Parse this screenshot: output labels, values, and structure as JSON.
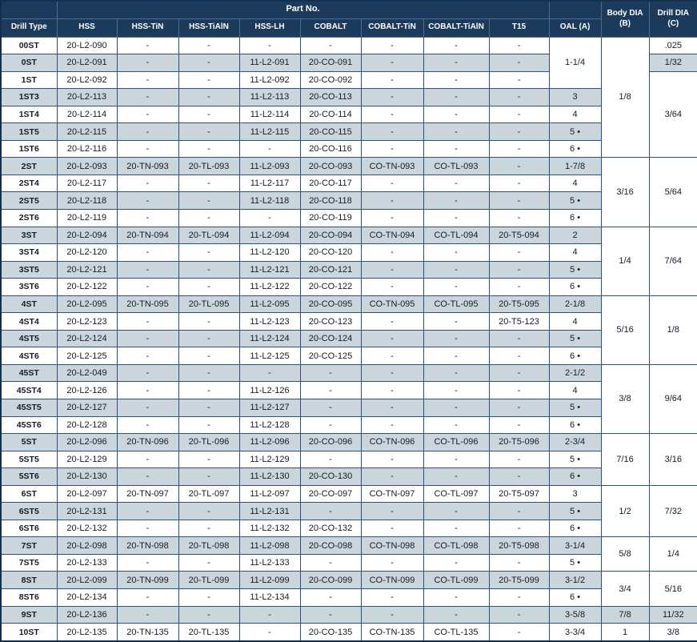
{
  "table": {
    "header": {
      "part_no": "Part No.",
      "drill_type": "Drill Type",
      "part_columns": [
        "HSS",
        "HSS-TiN",
        "HSS-TiAlN",
        "HSS-LH",
        "COBALT",
        "COBALT-TiN",
        "COBALT-TiAlN",
        "T15"
      ],
      "oal": "OAL (A)",
      "body_dia": "Body DIA\n(B)",
      "drill_dia": "Drill DIA\n(C)"
    },
    "colors": {
      "header_bg": "#1b3a5c",
      "header_text": "#ffffff",
      "alt_row_bg": "#cbd5dc",
      "grid_line": "#2f5078"
    },
    "rows": [
      {
        "type": "00ST",
        "parts": [
          "20-L2-090",
          "-",
          "-",
          "-",
          "-",
          "-",
          "-",
          "-"
        ],
        "oal": "1-1/4",
        "oal_span": 3,
        "body": "1/8",
        "body_span": 7,
        "drill": ".025"
      },
      {
        "type": "0ST",
        "parts": [
          "20-L2-091",
          "-",
          "-",
          "11-L2-091",
          "20-CO-091",
          "-",
          "-",
          "-"
        ],
        "drill": "1/32"
      },
      {
        "type": "1ST",
        "parts": [
          "20-L2-092",
          "-",
          "-",
          "11-L2-092",
          "20-CO-092",
          "-",
          "-",
          "-"
        ],
        "drill": "3/64",
        "drill_span": 5
      },
      {
        "type": "1ST3",
        "parts": [
          "20-L2-113",
          "-",
          "-",
          "11-L2-113",
          "20-CO-113",
          "-",
          "-",
          "-"
        ],
        "oal": "3"
      },
      {
        "type": "1ST4",
        "parts": [
          "20-L2-114",
          "-",
          "-",
          "11-L2-114",
          "20-CO-114",
          "-",
          "-",
          "-"
        ],
        "oal": "4"
      },
      {
        "type": "1ST5",
        "parts": [
          "20-L2-115",
          "-",
          "-",
          "11-L2-115",
          "20-CO-115",
          "-",
          "-",
          "-"
        ],
        "oal": "5 •"
      },
      {
        "type": "1ST6",
        "parts": [
          "20-L2-116",
          "-",
          "-",
          "-",
          "20-CO-116",
          "-",
          "-",
          "-"
        ],
        "oal": "6 •"
      },
      {
        "type": "2ST",
        "parts": [
          "20-L2-093",
          "20-TN-093",
          "20-TL-093",
          "11-L2-093",
          "20-CO-093",
          "CO-TN-093",
          "CO-TL-093",
          "-"
        ],
        "oal": "1-7/8",
        "body": "3/16",
        "body_span": 4,
        "drill": "5/64",
        "drill_span": 4
      },
      {
        "type": "2ST4",
        "parts": [
          "20-L2-117",
          "-",
          "-",
          "11-L2-117",
          "20-CO-117",
          "-",
          "-",
          "-"
        ],
        "oal": "4"
      },
      {
        "type": "2ST5",
        "parts": [
          "20-L2-118",
          "-",
          "-",
          "11-L2-118",
          "20-CO-118",
          "-",
          "-",
          "-"
        ],
        "oal": "5 •"
      },
      {
        "type": "2ST6",
        "parts": [
          "20-L2-119",
          "-",
          "-",
          "-",
          "20-CO-119",
          "-",
          "-",
          "-"
        ],
        "oal": "6 •"
      },
      {
        "type": "3ST",
        "parts": [
          "20-L2-094",
          "20-TN-094",
          "20-TL-094",
          "11-L2-094",
          "20-CO-094",
          "CO-TN-094",
          "CO-TL-094",
          "20-T5-094"
        ],
        "oal": "2",
        "body": "1/4",
        "body_span": 4,
        "drill": "7/64",
        "drill_span": 4
      },
      {
        "type": "3ST4",
        "parts": [
          "20-L2-120",
          "-",
          "-",
          "11-L2-120",
          "20-CO-120",
          "-",
          "-",
          "-"
        ],
        "oal": "4"
      },
      {
        "type": "3ST5",
        "parts": [
          "20-L2-121",
          "-",
          "-",
          "11-L2-121",
          "20-CO-121",
          "-",
          "-",
          "-"
        ],
        "oal": "5 •"
      },
      {
        "type": "3ST6",
        "parts": [
          "20-L2-122",
          "-",
          "-",
          "11-L2-122",
          "20-CO-122",
          "-",
          "-",
          "-"
        ],
        "oal": "6 •"
      },
      {
        "type": "4ST",
        "parts": [
          "20-L2-095",
          "20-TN-095",
          "20-TL-095",
          "11-L2-095",
          "20-CO-095",
          "CO-TN-095",
          "CO-TL-095",
          "20-T5-095"
        ],
        "oal": "2-1/8",
        "body": "5/16",
        "body_span": 4,
        "drill": "1/8",
        "drill_span": 4
      },
      {
        "type": "4ST4",
        "parts": [
          "20-L2-123",
          "-",
          "-",
          "11-L2-123",
          "20-CO-123",
          "-",
          "-",
          "20-T5-123"
        ],
        "oal": "4"
      },
      {
        "type": "4ST5",
        "parts": [
          "20-L2-124",
          "-",
          "-",
          "11-L2-124",
          "20-CO-124",
          "-",
          "-",
          "-"
        ],
        "oal": "5 •"
      },
      {
        "type": "4ST6",
        "parts": [
          "20-L2-125",
          "-",
          "-",
          "11-L2-125",
          "20-CO-125",
          "-",
          "-",
          "-"
        ],
        "oal": "6 •"
      },
      {
        "type": "45ST",
        "parts": [
          "20-L2-049",
          "-",
          "-",
          "-",
          "-",
          "-",
          "-",
          "-"
        ],
        "oal": "2-1/2",
        "body": "3/8",
        "body_span": 4,
        "drill": "9/64",
        "drill_span": 4
      },
      {
        "type": "45ST4",
        "parts": [
          "20-L2-126",
          "-",
          "-",
          "11-L2-126",
          "-",
          "-",
          "-",
          "-"
        ],
        "oal": "4"
      },
      {
        "type": "45ST5",
        "parts": [
          "20-L2-127",
          "-",
          "-",
          "11-L2-127",
          "-",
          "-",
          "-",
          "-"
        ],
        "oal": "5 •"
      },
      {
        "type": "45ST6",
        "parts": [
          "20-L2-128",
          "-",
          "-",
          "11-L2-128",
          "-",
          "-",
          "-",
          "-"
        ],
        "oal": "6 •"
      },
      {
        "type": "5ST",
        "parts": [
          "20-L2-096",
          "20-TN-096",
          "20-TL-096",
          "11-L2-096",
          "20-CO-096",
          "CO-TN-096",
          "CO-TL-096",
          "20-T5-096"
        ],
        "oal": "2-3/4",
        "body": "7/16",
        "body_span": 3,
        "drill": "3/16",
        "drill_span": 3
      },
      {
        "type": "5ST5",
        "parts": [
          "20-L2-129",
          "-",
          "-",
          "11-L2-129",
          "-",
          "-",
          "-",
          "-"
        ],
        "oal": "5 •"
      },
      {
        "type": "5ST6",
        "parts": [
          "20-L2-130",
          "-",
          "-",
          "11-L2-130",
          "20-CO-130",
          "-",
          "-",
          "-"
        ],
        "oal": "6 •"
      },
      {
        "type": "6ST",
        "parts": [
          "20-L2-097",
          "20-TN-097",
          "20-TL-097",
          "11-L2-097",
          "20-CO-097",
          "CO-TN-097",
          "CO-TL-097",
          "20-T5-097"
        ],
        "oal": "3",
        "body": "1/2",
        "body_span": 3,
        "drill": "7/32",
        "drill_span": 3
      },
      {
        "type": "6ST5",
        "parts": [
          "20-L2-131",
          "-",
          "-",
          "11-L2-131",
          "-",
          "-",
          "-",
          "-"
        ],
        "oal": "5 •"
      },
      {
        "type": "6ST6",
        "parts": [
          "20-L2-132",
          "-",
          "-",
          "11-L2-132",
          "20-CO-132",
          "-",
          "-",
          "-"
        ],
        "oal": "6 •"
      },
      {
        "type": "7ST",
        "parts": [
          "20-L2-098",
          "20-TN-098",
          "20-TL-098",
          "11-L2-098",
          "20-CO-098",
          "CO-TN-098",
          "CO-TL-098",
          "20-T5-098"
        ],
        "oal": "3-1/4",
        "body": "5/8",
        "body_span": 2,
        "drill": "1/4",
        "drill_span": 2
      },
      {
        "type": "7ST5",
        "parts": [
          "20-L2-133",
          "-",
          "-",
          "11-L2-133",
          "-",
          "-",
          "-",
          "-"
        ],
        "oal": "5 •"
      },
      {
        "type": "8ST",
        "parts": [
          "20-L2-099",
          "20-TN-099",
          "20-TL-099",
          "11-L2-099",
          "20-CO-099",
          "CO-TN-099",
          "CO-TL-099",
          "20-T5-099"
        ],
        "oal": "3-1/2",
        "body": "3/4",
        "body_span": 2,
        "drill": "5/16",
        "drill_span": 2
      },
      {
        "type": "8ST6",
        "parts": [
          "20-L2-134",
          "-",
          "-",
          "11-L2-134",
          "-",
          "-",
          "-",
          "-"
        ],
        "oal": "6 •"
      },
      {
        "type": "9ST",
        "parts": [
          "20-L2-136",
          "-",
          "-",
          "-",
          "-",
          "-",
          "-",
          "-"
        ],
        "oal": "3-5/8",
        "body": "7/8",
        "drill": "11/32"
      },
      {
        "type": "10ST",
        "parts": [
          "20-L2-135",
          "20-TN-135",
          "20-TL-135",
          "-",
          "20-CO-135",
          "CO-TN-135",
          "CO-TL-135",
          "-"
        ],
        "oal": "3-3/4",
        "body": "1",
        "drill": "3/8"
      }
    ]
  }
}
